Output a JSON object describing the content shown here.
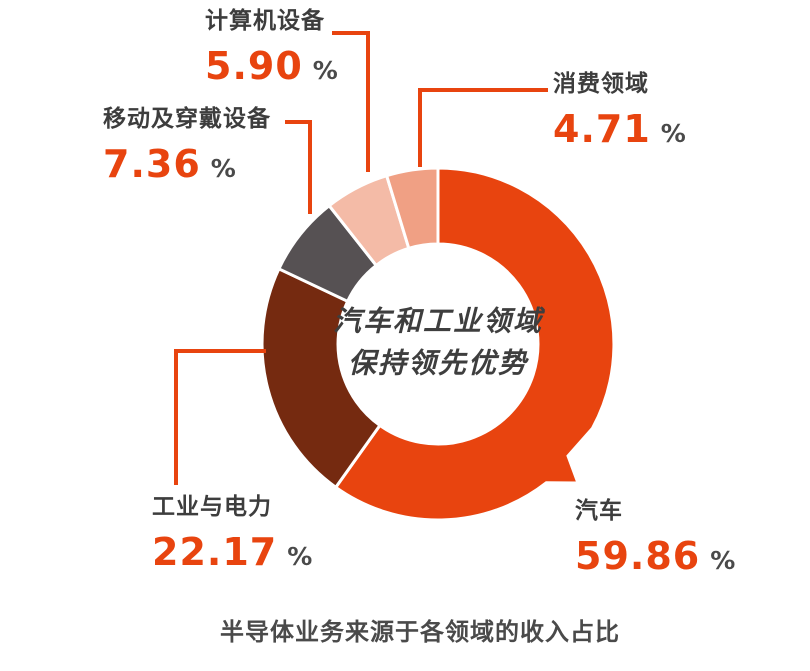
{
  "page": {
    "background": "#FFFFFF"
  },
  "chart_data": {
    "type": "pie",
    "variant": "donut",
    "title": "半导体业务来源于各领域的收入占比",
    "center_text": {
      "line1": "汽车和工业领域",
      "line2": "保持领先优势"
    },
    "unit_symbol": "%",
    "direction": "clockwise",
    "start_angle": "top",
    "series": [
      {
        "name": "汽车",
        "value": 59.86,
        "display": "59.86",
        "color": "#E8440F"
      },
      {
        "name": "工业与电力",
        "value": 22.17,
        "display": "22.17",
        "color": "#752A10"
      },
      {
        "name": "移动及穿戴设备",
        "value": 7.36,
        "display": "7.36",
        "color": "#565153"
      },
      {
        "name": "计算机设备",
        "value": 5.9,
        "display": "5.90",
        "color": "#F4BBA7"
      },
      {
        "name": "消费领域",
        "value": 4.71,
        "display": "4.71",
        "color": "#F0A084"
      }
    ],
    "colors": {
      "accent": "#E8440F",
      "label_text": "#3D3D3D",
      "percent_sign": "#4A4A4A",
      "center_text": "#3E3E3E"
    },
    "legend_position": "callout-labels",
    "highlight": "汽车 slice has speech-bubble tail pointing to its label"
  }
}
